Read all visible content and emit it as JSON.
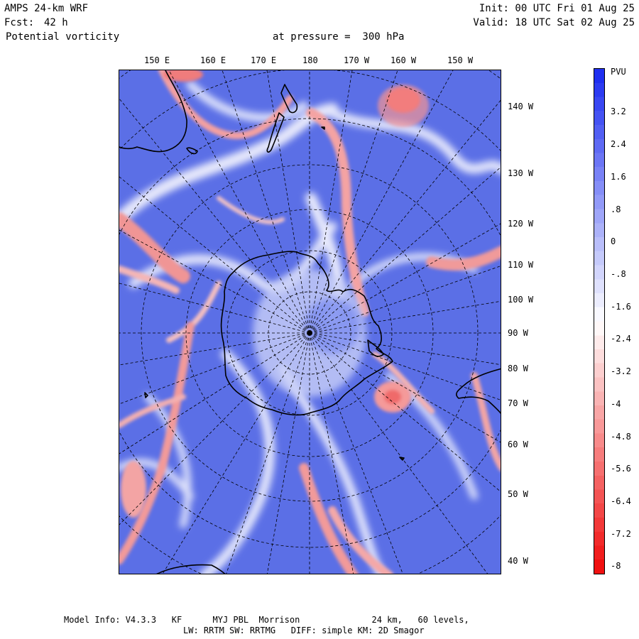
{
  "header": {
    "model": "AMPS 24-km WRF",
    "fcst_label": "Fcst:",
    "fcst_value": "42 h",
    "field": "Potential vorticity",
    "pressure": "at pressure =  300 hPa",
    "init": "Init: 00 UTC Fri 01 Aug 25",
    "valid": "Valid: 18 UTC Sat 02 Aug 25"
  },
  "map": {
    "projection_center": "South Pole",
    "top_longitude_labels": [
      "150 E",
      "160 E",
      "170 E",
      "180",
      "170 W",
      "160 W",
      "150 W"
    ],
    "right_longitude_labels": [
      "140 W",
      "130 W",
      "120 W",
      "110 W",
      "100 W",
      "90 W",
      "80 W",
      "70 W",
      "60 W",
      "50 W",
      "40 W"
    ]
  },
  "colorbar": {
    "unit": "PVU",
    "labels": [
      "3.2",
      "2.4",
      "1.6",
      ".8",
      "0",
      "-.8",
      "-1.6",
      "-2.4",
      "-3.2",
      "-4",
      "-4.8",
      "-5.6",
      "-6.4",
      "-7.2",
      "-8"
    ],
    "top_color": "#1f2ff0",
    "mid_color": "#ffffff",
    "bottom_color": "#f01010"
  },
  "footer": {
    "line1": "Model Info: V4.3.3   KF      MYJ PBL  Morrison              24 km,   60 levels,",
    "line2": "LW: RRTM SW: RRTMG   DIFF: simple KM: 2D Smagor"
  }
}
